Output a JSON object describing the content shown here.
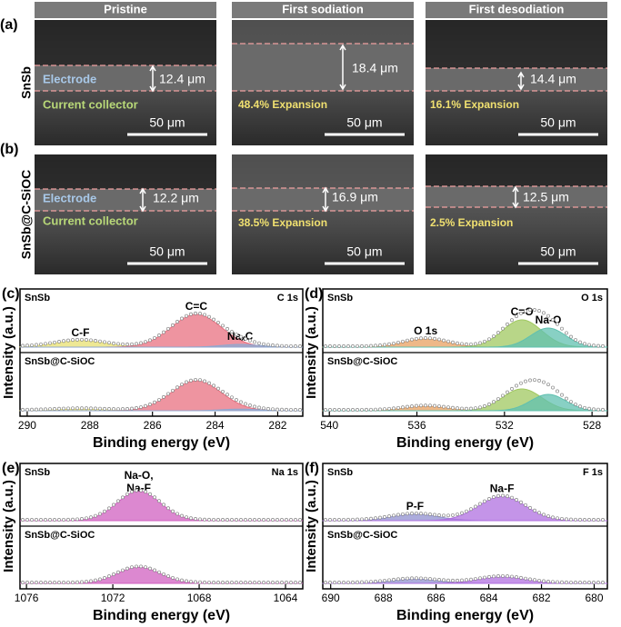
{
  "sem": {
    "columns": [
      "Pristine",
      "First sodiation",
      "First desodiation"
    ],
    "rows": [
      {
        "panel": "(a)",
        "sample": "SnSb",
        "cells": [
          {
            "thickness": "12.4 μm",
            "electrode": "Electrode",
            "collector": "Current collector",
            "scale": "50 μm"
          },
          {
            "thickness": "18.4 μm",
            "expansion": "48.4% Expansion",
            "scale": "50 μm"
          },
          {
            "thickness": "14.4 μm",
            "expansion": "16.1% Expansion",
            "scale": "50 μm"
          }
        ]
      },
      {
        "panel": "(b)",
        "sample": "SnSb@C-SiOC",
        "cells": [
          {
            "thickness": "12.2 μm",
            "electrode": "Electrode",
            "collector": "Current collector",
            "scale": "50 μm"
          },
          {
            "thickness": "16.9 μm",
            "expansion": "38.5% Expansion",
            "scale": "50 μm"
          },
          {
            "thickness": "12.5 μm",
            "expansion": "2.5% Expansion",
            "scale": "50 μm"
          }
        ]
      }
    ]
  },
  "xps": [
    {
      "panel": "(c)",
      "type": "xps",
      "element": "C 1s",
      "top_label": "SnSb",
      "bottom_label": "SnSb@C-SiOC",
      "x_label": "Binding energy (eV)",
      "y_label": "Intensity (a.u.)",
      "xlim": [
        290.23,
        281.2
      ],
      "xticks": [
        290,
        288,
        286,
        284,
        282
      ],
      "top": [
        {
          "label": "C-F",
          "center": 288.3,
          "height": 0.12,
          "width": 0.8,
          "color": "#e8e070"
        },
        {
          "label": "C=C",
          "center": 284.6,
          "height": 0.6,
          "width": 0.8,
          "color": "#e87080"
        },
        {
          "label": "NaₓC",
          "center": 283.2,
          "height": 0.05,
          "width": 0.6,
          "color": "#90a8d0"
        }
      ],
      "bottom": [
        {
          "center": 288.3,
          "height": 0.03,
          "width": 0.8,
          "color": "#e8e070"
        },
        {
          "center": 284.6,
          "height": 0.55,
          "width": 0.8,
          "color": "#e87080"
        },
        {
          "center": 283.2,
          "height": 0.03,
          "width": 0.6,
          "color": "#90a8d0"
        }
      ]
    },
    {
      "panel": "(d)",
      "type": "xps",
      "element": "O 1s",
      "top_label": "SnSb",
      "bottom_label": "SnSb@C-SiOC",
      "x_label": "Binding energy (eV)",
      "y_label": "Intensity (a.u.)",
      "xlim": [
        540.3,
        527.3
      ],
      "xticks": [
        540,
        536,
        532,
        528
      ],
      "top": [
        {
          "label": "O 1s",
          "center": 535.6,
          "height": 0.15,
          "width": 1.0,
          "color": "#e8a060"
        },
        {
          "label": "C=O",
          "center": 531.2,
          "height": 0.5,
          "width": 0.9,
          "color": "#a0c860"
        },
        {
          "label": "Na-O",
          "center": 530,
          "height": 0.35,
          "width": 0.8,
          "color": "#60c0b0"
        }
      ],
      "bottom": [
        {
          "center": 535.6,
          "height": 0.08,
          "width": 1.0,
          "color": "#e8a060"
        },
        {
          "center": 531.2,
          "height": 0.4,
          "width": 0.9,
          "color": "#a0c860"
        },
        {
          "center": 530,
          "height": 0.3,
          "width": 0.8,
          "color": "#60c0b0"
        }
      ]
    },
    {
      "panel": "(e)",
      "type": "xps",
      "element": "Na 1s",
      "top_label": "SnSb",
      "bottom_label": "SnSb@C-SiOC",
      "x_label": "Binding energy (eV)",
      "y_label": "Intensity (a.u.)",
      "xlim": [
        1076.3,
        1063.2
      ],
      "xticks": [
        1076,
        1072,
        1068,
        1064
      ],
      "top": [
        {
          "label": [
            "Na-O,",
            "Na-F"
          ],
          "center": 1070.8,
          "height": 0.55,
          "width": 1.0,
          "color": "#d060c0"
        }
      ],
      "bottom": [
        {
          "center": 1070.8,
          "height": 0.3,
          "width": 1.0,
          "color": "#d060c0"
        }
      ]
    },
    {
      "panel": "(f)",
      "type": "xps",
      "element": "F 1s",
      "top_label": "SnSb",
      "bottom_label": "SnSb@C-SiOC",
      "x_label": "Binding energy (eV)",
      "y_label": "Intensity (a.u.)",
      "xlim": [
        690.3,
        679.5
      ],
      "xticks": [
        690,
        688,
        686,
        684,
        682,
        680
      ],
      "top": [
        {
          "label": "P-F",
          "center": 686.8,
          "height": 0.12,
          "width": 0.9,
          "color": "#9090d0"
        },
        {
          "label": "Na-F",
          "center": 683.5,
          "height": 0.45,
          "width": 0.9,
          "color": "#b070e0"
        }
      ],
      "bottom": [
        {
          "center": 686.8,
          "height": 0.08,
          "width": 0.9,
          "color": "#9090d0"
        },
        {
          "center": 683.5,
          "height": 0.12,
          "width": 0.9,
          "color": "#b070e0"
        }
      ]
    }
  ]
}
